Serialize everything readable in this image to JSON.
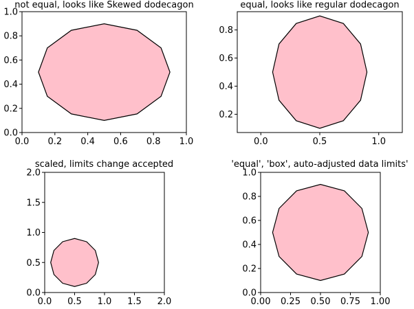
{
  "chart_data": [
    {
      "type": "polygon",
      "title": "not equal, looks like Skewed dodecagon",
      "aspect": "auto",
      "xlim": [
        0,
        1
      ],
      "ylim": [
        0,
        1
      ],
      "xticks": [
        0.0,
        0.2,
        0.4,
        0.6,
        0.8,
        1.0
      ],
      "xtick_labels": [
        "0.0",
        "0.2",
        "0.4",
        "0.6",
        "0.8",
        "1.0"
      ],
      "yticks": [
        0.0,
        0.2,
        0.4,
        0.6,
        0.8,
        1.0
      ],
      "ytick_labels": [
        "0.0",
        "0.2",
        "0.4",
        "0.6",
        "0.8",
        "1.0"
      ],
      "fill_color": "#ffc0cb",
      "edge_color": "#000000",
      "vertices": [
        [
          0.9,
          0.5
        ],
        [
          0.846,
          0.7
        ],
        [
          0.7,
          0.846
        ],
        [
          0.5,
          0.9
        ],
        [
          0.3,
          0.846
        ],
        [
          0.154,
          0.7
        ],
        [
          0.1,
          0.5
        ],
        [
          0.154,
          0.3
        ],
        [
          0.3,
          0.154
        ],
        [
          0.5,
          0.1
        ],
        [
          0.7,
          0.154
        ],
        [
          0.846,
          0.3
        ]
      ]
    },
    {
      "type": "polygon",
      "title": "equal, looks like regular dodecagon",
      "aspect": "equal",
      "xlim": [
        -0.2,
        1.2
      ],
      "ylim": [
        0.07,
        0.93
      ],
      "xticks": [
        0.0,
        0.5,
        1.0
      ],
      "xtick_labels": [
        "0.0",
        "0.5",
        "1.0"
      ],
      "yticks": [
        0.2,
        0.4,
        0.6,
        0.8
      ],
      "ytick_labels": [
        "0.2",
        "0.4",
        "0.6",
        "0.8"
      ],
      "fill_color": "#ffc0cb",
      "edge_color": "#000000",
      "vertices": [
        [
          0.9,
          0.5
        ],
        [
          0.846,
          0.7
        ],
        [
          0.7,
          0.846
        ],
        [
          0.5,
          0.9
        ],
        [
          0.3,
          0.846
        ],
        [
          0.154,
          0.7
        ],
        [
          0.1,
          0.5
        ],
        [
          0.154,
          0.3
        ],
        [
          0.3,
          0.154
        ],
        [
          0.5,
          0.1
        ],
        [
          0.7,
          0.154
        ],
        [
          0.846,
          0.3
        ]
      ]
    },
    {
      "type": "polygon",
      "title": "scaled, limits change accepted",
      "aspect": "scaled",
      "xlim": [
        0,
        2
      ],
      "ylim": [
        0,
        2
      ],
      "xticks": [
        0.0,
        0.5,
        1.0,
        1.5,
        2.0
      ],
      "xtick_labels": [
        "0.0",
        "0.5",
        "1.0",
        "1.5",
        "2.0"
      ],
      "yticks": [
        0.0,
        0.5,
        1.0,
        1.5,
        2.0
      ],
      "ytick_labels": [
        "0.0",
        "0.5",
        "1.0",
        "1.5",
        "2.0"
      ],
      "fill_color": "#ffc0cb",
      "edge_color": "#000000",
      "vertices": [
        [
          0.9,
          0.5
        ],
        [
          0.846,
          0.7
        ],
        [
          0.7,
          0.846
        ],
        [
          0.5,
          0.9
        ],
        [
          0.3,
          0.846
        ],
        [
          0.154,
          0.7
        ],
        [
          0.1,
          0.5
        ],
        [
          0.154,
          0.3
        ],
        [
          0.3,
          0.154
        ],
        [
          0.5,
          0.1
        ],
        [
          0.7,
          0.154
        ],
        [
          0.846,
          0.3
        ]
      ]
    },
    {
      "type": "polygon",
      "title": "'equal', 'box', auto-adjusted data limits'",
      "aspect": "equal-box",
      "xlim": [
        0,
        1
      ],
      "ylim": [
        0,
        1
      ],
      "xticks": [
        0.0,
        0.25,
        0.5,
        0.75,
        1.0
      ],
      "xtick_labels": [
        "0.00",
        "0.25",
        "0.50",
        "0.75",
        "1.00"
      ],
      "yticks": [
        0.0,
        0.2,
        0.4,
        0.6,
        0.8,
        1.0
      ],
      "ytick_labels": [
        "0.0",
        "0.2",
        "0.4",
        "0.6",
        "0.8",
        "1.0"
      ],
      "fill_color": "#ffc0cb",
      "edge_color": "#000000",
      "vertices": [
        [
          0.9,
          0.5
        ],
        [
          0.846,
          0.7
        ],
        [
          0.7,
          0.846
        ],
        [
          0.5,
          0.9
        ],
        [
          0.3,
          0.846
        ],
        [
          0.154,
          0.7
        ],
        [
          0.1,
          0.5
        ],
        [
          0.154,
          0.3
        ],
        [
          0.3,
          0.154
        ],
        [
          0.5,
          0.1
        ],
        [
          0.7,
          0.154
        ],
        [
          0.846,
          0.3
        ]
      ]
    }
  ]
}
